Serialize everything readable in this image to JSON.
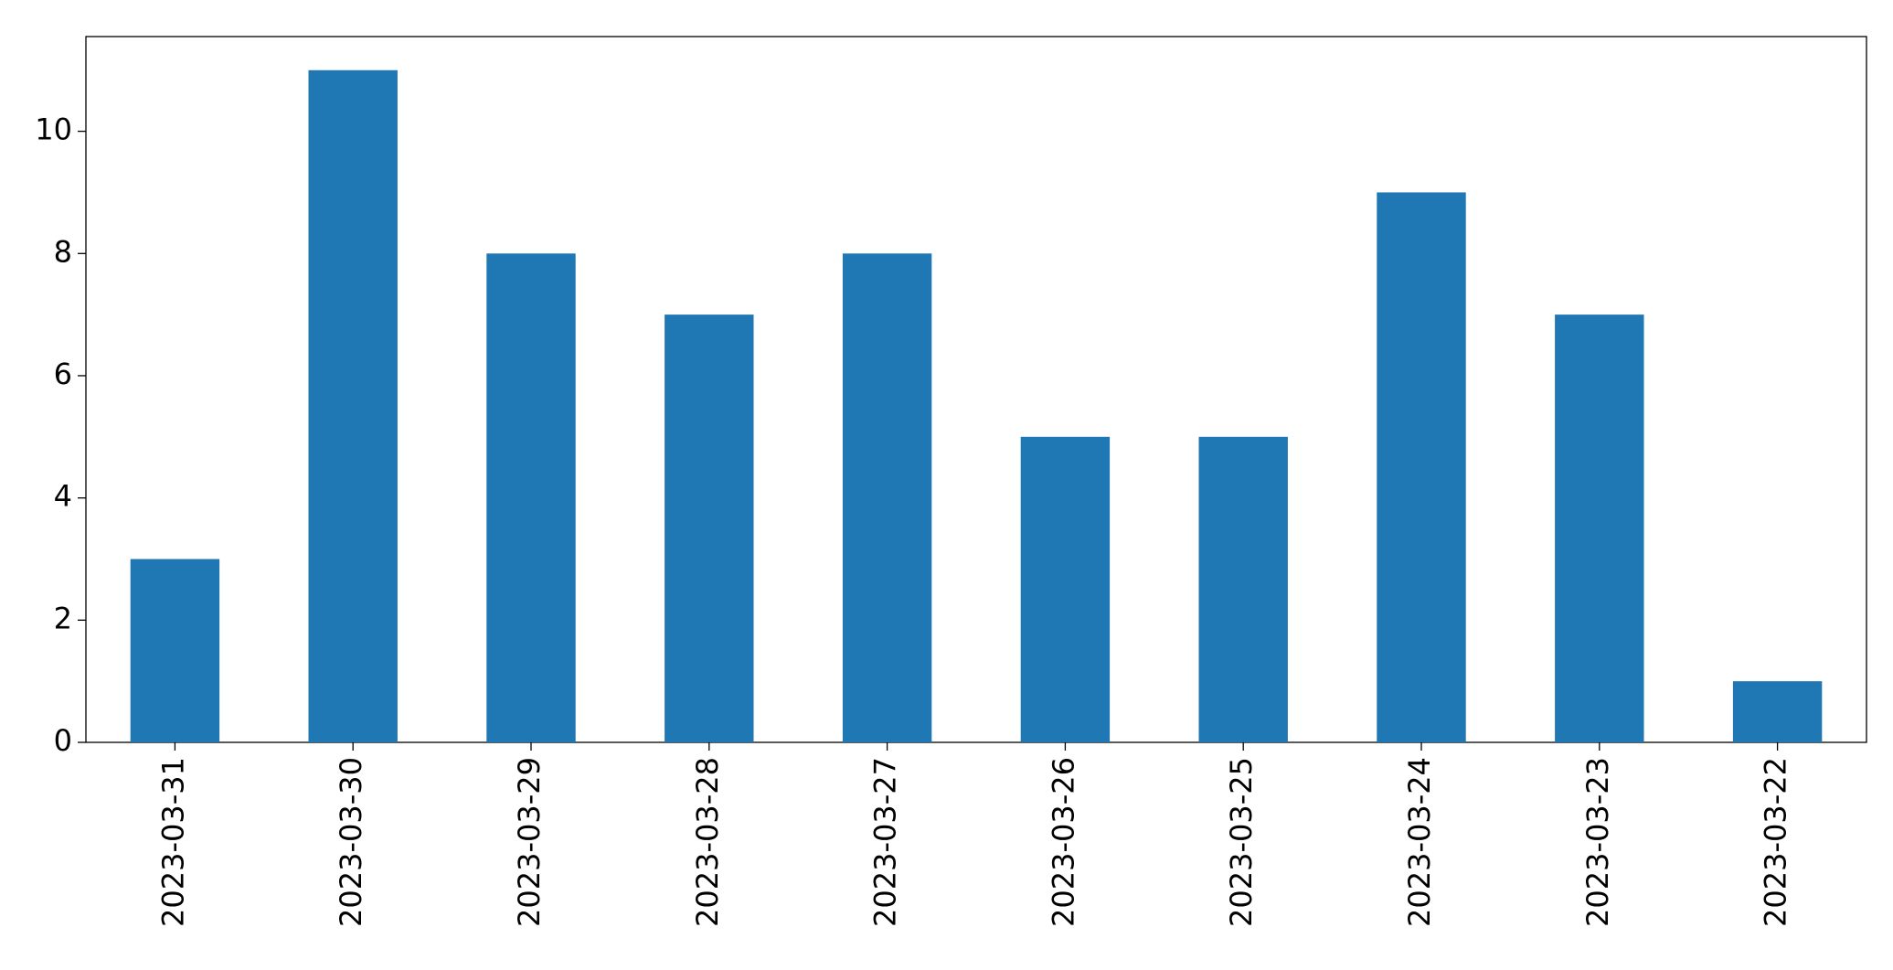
{
  "chart_data": {
    "type": "bar",
    "categories": [
      "2023-03-31",
      "2023-03-30",
      "2023-03-29",
      "2023-03-28",
      "2023-03-27",
      "2023-03-26",
      "2023-03-25",
      "2023-03-24",
      "2023-03-23",
      "2023-03-22"
    ],
    "values": [
      3,
      11,
      8,
      7,
      8,
      5,
      5,
      9,
      7,
      1
    ],
    "color": "#1f77b4",
    "ylim": [
      0,
      11.55
    ],
    "yticks": [
      0,
      2,
      4,
      6,
      8,
      10
    ],
    "grid": false
  }
}
